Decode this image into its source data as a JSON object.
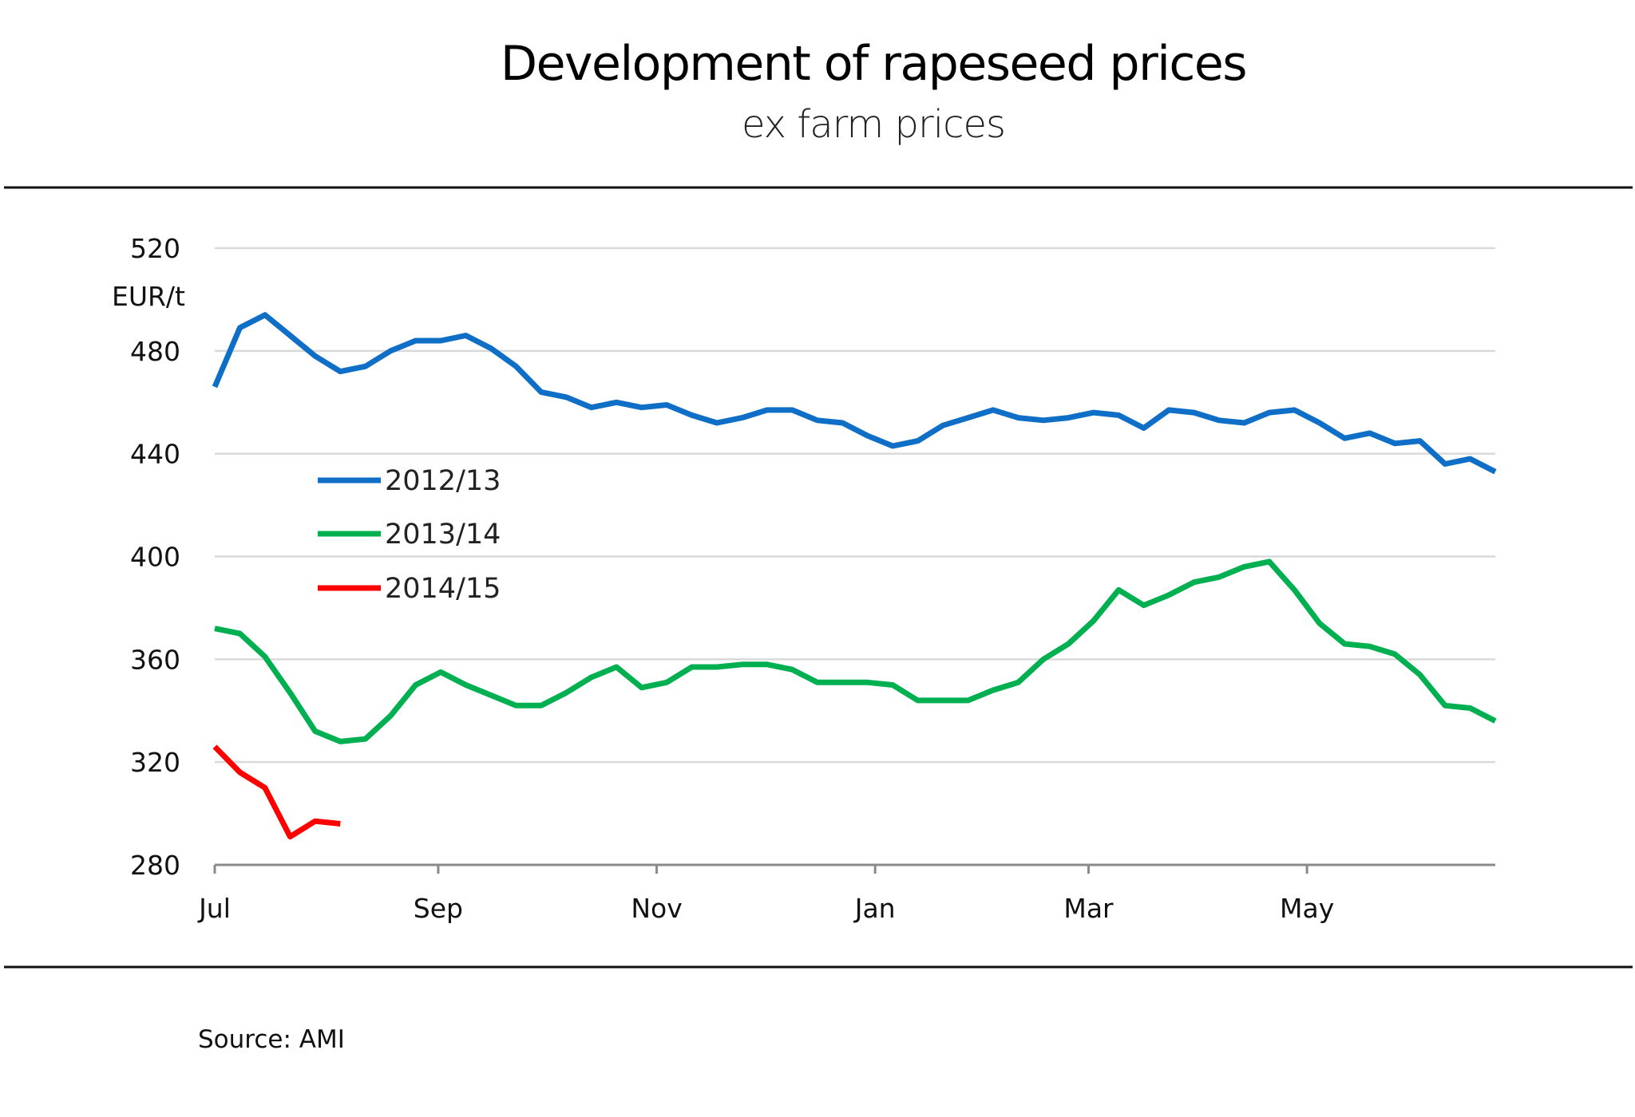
{
  "chart_data": {
    "type": "line",
    "title": "Development of rapeseed prices",
    "subtitle": "ex farm prices",
    "ylabel": "EUR/t",
    "xlabel": "",
    "ylim": [
      280,
      520
    ],
    "yticks": [
      280,
      320,
      360,
      400,
      440,
      480,
      520
    ],
    "xticks": [
      "Jul",
      "Sep",
      "Nov",
      "Jan",
      "Mar",
      "May"
    ],
    "x_tick_week_index": [
      0,
      8.9,
      17.6,
      26.3,
      34.8,
      43.5
    ],
    "x_domain_weeks": [
      0,
      51
    ],
    "grid": "horizontal",
    "legend_position": "center-left",
    "series": [
      {
        "name": "2012/13",
        "color": "#0f6fc6",
        "values": [
          466,
          489,
          494,
          486,
          478,
          472,
          474,
          480,
          484,
          484,
          486,
          481,
          474,
          464,
          462,
          458,
          460,
          458,
          459,
          455,
          452,
          454,
          457,
          457,
          453,
          452,
          447,
          443,
          445,
          451,
          454,
          457,
          454,
          453,
          454,
          456,
          455,
          450,
          457,
          456,
          453,
          452,
          456,
          457,
          452,
          446,
          448,
          444,
          445,
          436,
          438,
          433
        ]
      },
      {
        "name": "2013/14",
        "color": "#00b050",
        "values": [
          372,
          370,
          361,
          347,
          332,
          328,
          329,
          338,
          350,
          355,
          350,
          346,
          342,
          342,
          347,
          353,
          357,
          349,
          351,
          357,
          357,
          358,
          358,
          356,
          351,
          351,
          351,
          350,
          344,
          344,
          344,
          348,
          351,
          360,
          366,
          375,
          387,
          381,
          385,
          390,
          392,
          396,
          398,
          387,
          374,
          366,
          365,
          362,
          354,
          342,
          341,
          336
        ]
      },
      {
        "name": "2014/15",
        "color": "#ff0000",
        "values": [
          326,
          316,
          310,
          291,
          297,
          296
        ]
      }
    ],
    "source": "Source: AMI"
  }
}
